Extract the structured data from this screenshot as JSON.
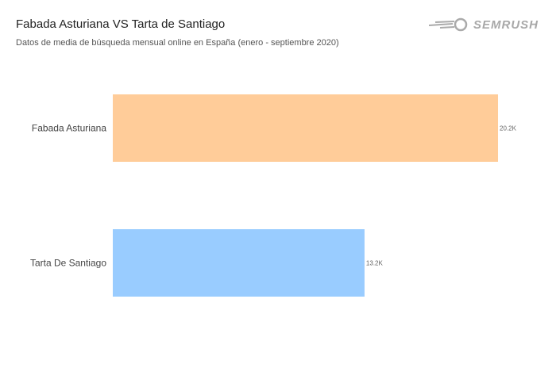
{
  "header": {
    "title": "Fabada Asturiana VS Tarta de Santiago",
    "subtitle": "Datos de media de búsqueda mensual online en España (enero - septiembre 2020)",
    "logo": "SEMRUSH"
  },
  "chart_data": {
    "type": "bar",
    "orientation": "horizontal",
    "categories": [
      "Fabada Asturiana",
      "Tarta De Santiago"
    ],
    "values": [
      20200,
      13200
    ],
    "data_labels": [
      "20.2K",
      "13.2K"
    ],
    "colors": [
      "#ffcc99",
      "#99ccff"
    ],
    "xlim": [
      0,
      20200
    ],
    "grid": false,
    "legend": "none"
  }
}
